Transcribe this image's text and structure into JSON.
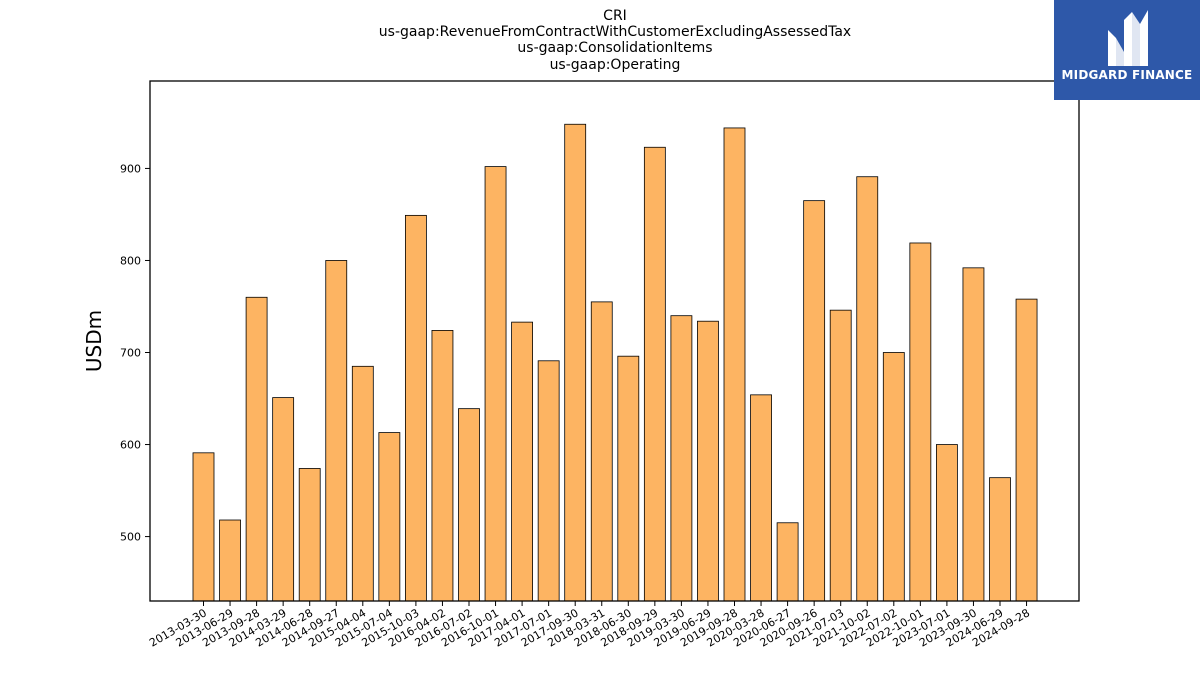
{
  "logo": {
    "text": "MIDGARD FINANCE"
  },
  "chart_data": {
    "type": "bar",
    "title_lines": [
      "CRI",
      "us-gaap:RevenueFromContractWithCustomerExcludingAssessedTax",
      "us-gaap:ConsolidationItems",
      "us-gaap:Operating"
    ],
    "xlabel": "",
    "ylabel": "USDm",
    "ylim": [
      430,
      995
    ],
    "yticks": [
      500,
      600,
      700,
      800,
      900
    ],
    "grid": false,
    "bar_color": "#fdb462",
    "edge_color": "#000000",
    "categories": [
      "2013-03-30",
      "2013-06-29",
      "2013-09-28",
      "2014-03-29",
      "2014-06-28",
      "2014-09-27",
      "2015-04-04",
      "2015-07-04",
      "2015-10-03",
      "2016-04-02",
      "2016-07-02",
      "2016-10-01",
      "2017-04-01",
      "2017-07-01",
      "2017-09-30",
      "2018-03-31",
      "2018-06-30",
      "2018-09-29",
      "2019-03-30",
      "2019-06-29",
      "2019-09-28",
      "2020-03-28",
      "2020-06-27",
      "2020-09-26",
      "2021-07-03",
      "2021-10-02",
      "2022-07-02",
      "2022-10-01",
      "2023-07-01",
      "2023-09-30",
      "2024-06-29",
      "2024-09-28"
    ],
    "values": [
      591,
      518,
      760,
      651,
      574,
      800,
      685,
      613,
      849,
      724,
      639,
      902,
      733,
      691,
      948,
      755,
      696,
      923,
      740,
      734,
      944,
      654,
      515,
      865,
      746,
      891,
      700,
      819,
      600,
      792,
      564,
      758
    ]
  }
}
